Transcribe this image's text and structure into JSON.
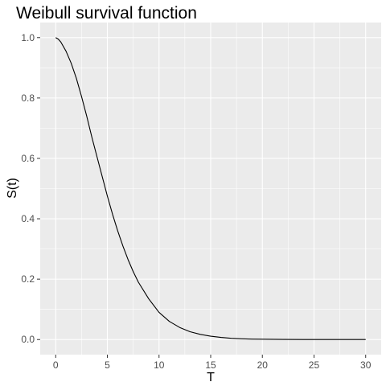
{
  "chart_data": {
    "type": "line",
    "title": "Weibull survival function",
    "xlabel": "T",
    "ylabel": "S(t)",
    "xlim": [
      -1.5,
      31.5
    ],
    "ylim": [
      -0.05,
      1.05
    ],
    "x_ticks": [
      0,
      5,
      10,
      15,
      20,
      25,
      30
    ],
    "y_ticks": [
      0.0,
      0.2,
      0.4,
      0.6,
      0.8,
      1.0
    ],
    "x_tick_labels": [
      "0",
      "5",
      "10",
      "15",
      "20",
      "25",
      "30"
    ],
    "y_tick_labels": [
      "0.0",
      "0.2",
      "0.4",
      "0.6",
      "0.8",
      "1.0"
    ],
    "grid": true,
    "colors": {
      "panel": "#ebebeb",
      "grid": "#ffffff",
      "line": "#000000"
    },
    "series": [
      {
        "x": [
          0,
          0.25,
          0.5,
          1,
          1.5,
          2,
          2.5,
          3,
          3.5,
          4,
          4.5,
          5,
          5.5,
          6,
          6.5,
          7,
          7.5,
          8,
          9,
          10,
          11,
          12,
          13,
          14,
          15,
          16,
          17,
          18,
          19,
          20,
          22,
          24,
          26,
          28,
          30
        ],
        "values": [
          1.0,
          0.995,
          0.985,
          0.955,
          0.915,
          0.865,
          0.805,
          0.74,
          0.67,
          0.605,
          0.54,
          0.475,
          0.415,
          0.36,
          0.31,
          0.265,
          0.225,
          0.19,
          0.135,
          0.09,
          0.06,
          0.04,
          0.026,
          0.017,
          0.011,
          0.007,
          0.004,
          0.0025,
          0.0015,
          0.001,
          0.0004,
          0.0002,
          0.0001,
          0.0,
          0.0
        ]
      }
    ]
  }
}
